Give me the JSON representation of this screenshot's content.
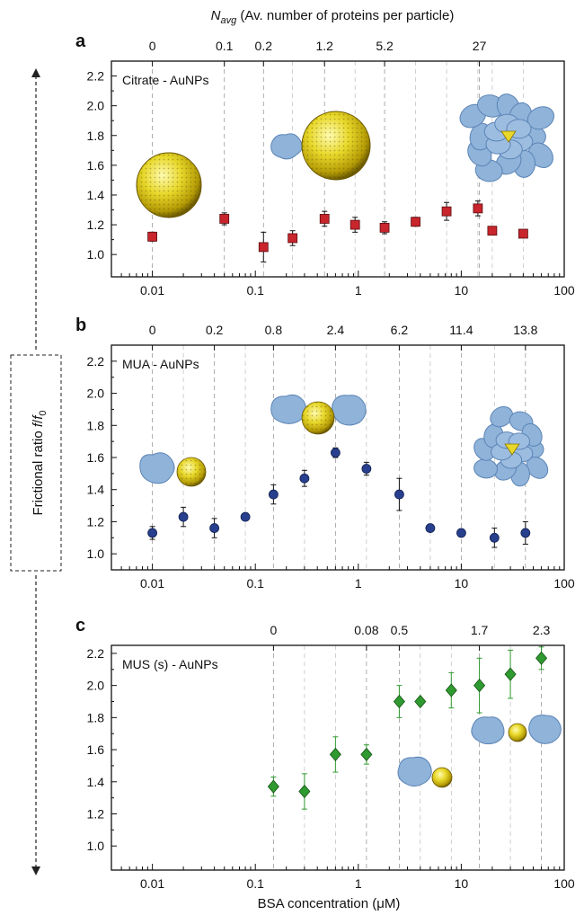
{
  "figure": {
    "top_axis_label_main": "N",
    "top_axis_label_sub": "avg",
    "top_axis_label_rest": " (Av. number of proteins per particle)",
    "y_axis_label_main": "Frictional ratio ",
    "y_axis_label_f": "f",
    "y_axis_label_slash": "/",
    "y_axis_label_f0": "f",
    "y_axis_label_sub0": "0",
    "x_axis_label": "BSA concentration (μM)"
  },
  "chart_data": [
    {
      "panel": "a",
      "type": "scatter",
      "label": "Citrate - AuNPs",
      "x_scale": "log",
      "xlim": [
        0.004,
        100
      ],
      "ylim": [
        0.85,
        2.3
      ],
      "x_ticks": [
        0.01,
        0.1,
        1,
        10,
        100
      ],
      "x_tick_labels": [
        "0.01",
        "0.1",
        "1",
        "10",
        "100"
      ],
      "y_ticks": [
        1.0,
        1.2,
        1.4,
        1.6,
        1.8,
        2.0,
        2.2
      ],
      "y_tick_labels": [
        "1.0",
        "1.2",
        "1.4",
        "1.6",
        "1.8",
        "2.0",
        "2.2"
      ],
      "top_ticks": [
        0.01,
        0.05,
        0.12,
        0.47,
        1.8,
        15
      ],
      "top_tick_labels": [
        "0",
        "0.1",
        "0.2",
        "1.2",
        "5.2",
        "27"
      ],
      "marker": "square",
      "color": "#c8252c",
      "x": [
        0.01,
        0.05,
        0.12,
        0.23,
        0.47,
        0.93,
        1.8,
        3.6,
        7.2,
        14.5,
        20,
        40
      ],
      "y": [
        1.12,
        1.24,
        1.05,
        1.11,
        1.24,
        1.2,
        1.18,
        1.22,
        1.29,
        1.31,
        1.16,
        1.14
      ],
      "err": [
        0.03,
        0.04,
        0.1,
        0.05,
        0.05,
        0.05,
        0.04,
        0.03,
        0.06,
        0.05,
        0.0,
        0.0
      ]
    },
    {
      "panel": "b",
      "type": "scatter",
      "label": "MUA - AuNPs",
      "x_scale": "log",
      "xlim": [
        0.004,
        100
      ],
      "ylim": [
        0.9,
        2.3
      ],
      "x_ticks": [
        0.01,
        0.1,
        1,
        10,
        100
      ],
      "x_tick_labels": [
        "0.01",
        "0.1",
        "1",
        "10",
        "100"
      ],
      "y_ticks": [
        1.0,
        1.2,
        1.4,
        1.6,
        1.8,
        2.0,
        2.2
      ],
      "y_tick_labels": [
        "1.0",
        "1.2",
        "1.4",
        "1.6",
        "1.8",
        "2.0",
        "2.2"
      ],
      "top_ticks": [
        0.01,
        0.04,
        0.15,
        0.6,
        2.5,
        10,
        42
      ],
      "top_tick_labels": [
        "0",
        "0.2",
        "0.8",
        "2.4",
        "6.2",
        "11.4",
        "13.8"
      ],
      "marker": "circle",
      "color": "#283f8e",
      "x": [
        0.01,
        0.02,
        0.04,
        0.08,
        0.15,
        0.3,
        0.6,
        1.2,
        2.5,
        5,
        10,
        21,
        42
      ],
      "y": [
        1.13,
        1.23,
        1.16,
        1.23,
        1.37,
        1.47,
        1.63,
        1.53,
        1.37,
        1.16,
        1.13,
        1.1,
        1.13
      ],
      "err": [
        0.04,
        0.06,
        0.06,
        0.0,
        0.06,
        0.05,
        0.03,
        0.04,
        0.1,
        0.0,
        0.0,
        0.06,
        0.07
      ]
    },
    {
      "panel": "c",
      "type": "scatter",
      "label": "MUS (s) - AuNPs",
      "x_scale": "log",
      "xlim": [
        0.004,
        100
      ],
      "ylim": [
        0.85,
        2.25
      ],
      "x_ticks": [
        0.01,
        0.1,
        1,
        10,
        100
      ],
      "x_tick_labels": [
        "0.01",
        "0.1",
        "1",
        "10",
        "100"
      ],
      "y_ticks": [
        1.0,
        1.2,
        1.4,
        1.6,
        1.8,
        2.0,
        2.2
      ],
      "y_tick_labels": [
        "1.0",
        "1.2",
        "1.4",
        "1.6",
        "1.8",
        "2.0",
        "2.2"
      ],
      "top_ticks": [
        0.15,
        1.2,
        2.5,
        15,
        60
      ],
      "top_tick_labels": [
        "0",
        "0.08",
        "0.5",
        "1.7",
        "2.3"
      ],
      "marker": "diamond",
      "color": "#2f9a2f",
      "x": [
        0.15,
        0.3,
        0.6,
        1.2,
        2.5,
        4,
        8,
        15,
        30,
        60
      ],
      "y": [
        1.37,
        1.34,
        1.57,
        1.57,
        1.9,
        1.9,
        1.97,
        2.0,
        2.07,
        2.17
      ],
      "err": [
        0.06,
        0.11,
        0.11,
        0.06,
        0.1,
        0.0,
        0.11,
        0.17,
        0.15,
        0.07
      ]
    }
  ]
}
